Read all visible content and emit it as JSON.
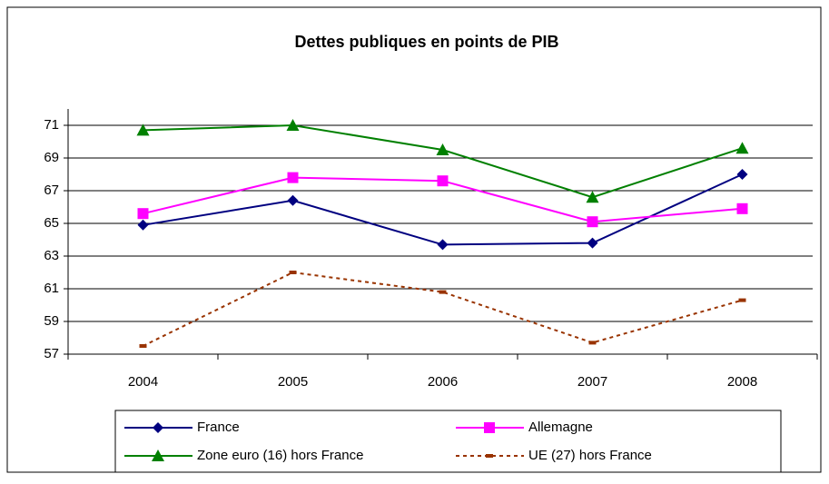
{
  "chart_data": {
    "type": "line",
    "title": "Dettes publiques en points de PIB",
    "categories": [
      "2004",
      "2005",
      "2006",
      "2007",
      "2008"
    ],
    "series": [
      {
        "name": "France",
        "color": "#000080",
        "marker": "diamond",
        "values": [
          64.9,
          66.4,
          63.7,
          63.8,
          68.0
        ]
      },
      {
        "name": "Allemagne",
        "color": "#ff00ff",
        "marker": "square",
        "values": [
          65.6,
          67.8,
          67.6,
          65.1,
          65.9
        ]
      },
      {
        "name": "Zone euro (16) hors France",
        "color": "#008000",
        "marker": "triangle",
        "values": [
          70.7,
          71.0,
          69.5,
          66.6,
          69.6
        ]
      },
      {
        "name": "UE (27) hors France",
        "color": "#993300",
        "marker": "dash",
        "dashed": true,
        "values": [
          57.5,
          62.0,
          60.8,
          57.7,
          60.3
        ]
      }
    ],
    "ylim": [
      57,
      72
    ],
    "yticks": [
      57,
      59,
      61,
      63,
      65,
      67,
      69,
      71
    ],
    "grid": true,
    "legend": "bottom"
  }
}
